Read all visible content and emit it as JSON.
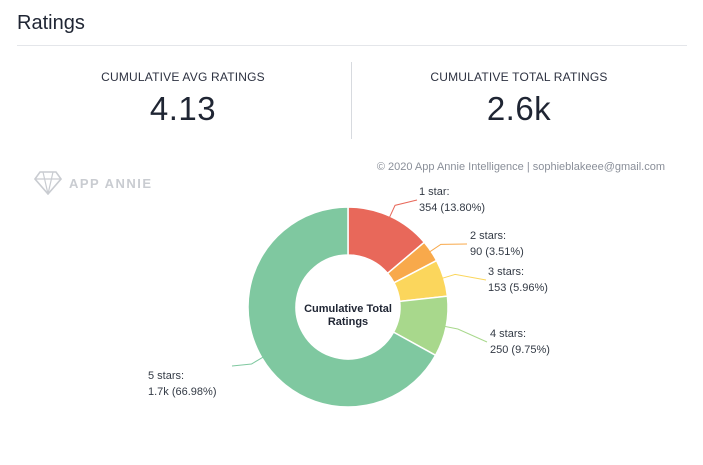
{
  "header": {
    "title": "Ratings"
  },
  "stats": {
    "avg_label": "CUMULATIVE AVG RATINGS",
    "avg_value": "4.13",
    "total_label": "CUMULATIVE TOTAL RATINGS",
    "total_value": "2.6k"
  },
  "copyright": "© 2020 App Annie Intelligence | sophieblakeee@gmail.com",
  "watermark": "APP ANNIE",
  "chart_data": {
    "type": "pie",
    "center_label": [
      "Cumulative Total",
      "Ratings"
    ],
    "slices": [
      {
        "label": "1 star:",
        "value_text": "354 (13.80%)",
        "percent": 13.8,
        "color": "#e8685a"
      },
      {
        "label": "2 stars:",
        "value_text": "90 (3.51%)",
        "percent": 3.51,
        "color": "#f8a94b"
      },
      {
        "label": "3 stars:",
        "value_text": "153 (5.96%)",
        "percent": 5.96,
        "color": "#fbd65c"
      },
      {
        "label": "4 stars:",
        "value_text": "250 (9.75%)",
        "percent": 9.75,
        "color": "#a8d88c"
      },
      {
        "label": "5 stars:",
        "value_text": "1.7k (66.98%)",
        "percent": 66.98,
        "color": "#7fc8a0"
      }
    ]
  }
}
